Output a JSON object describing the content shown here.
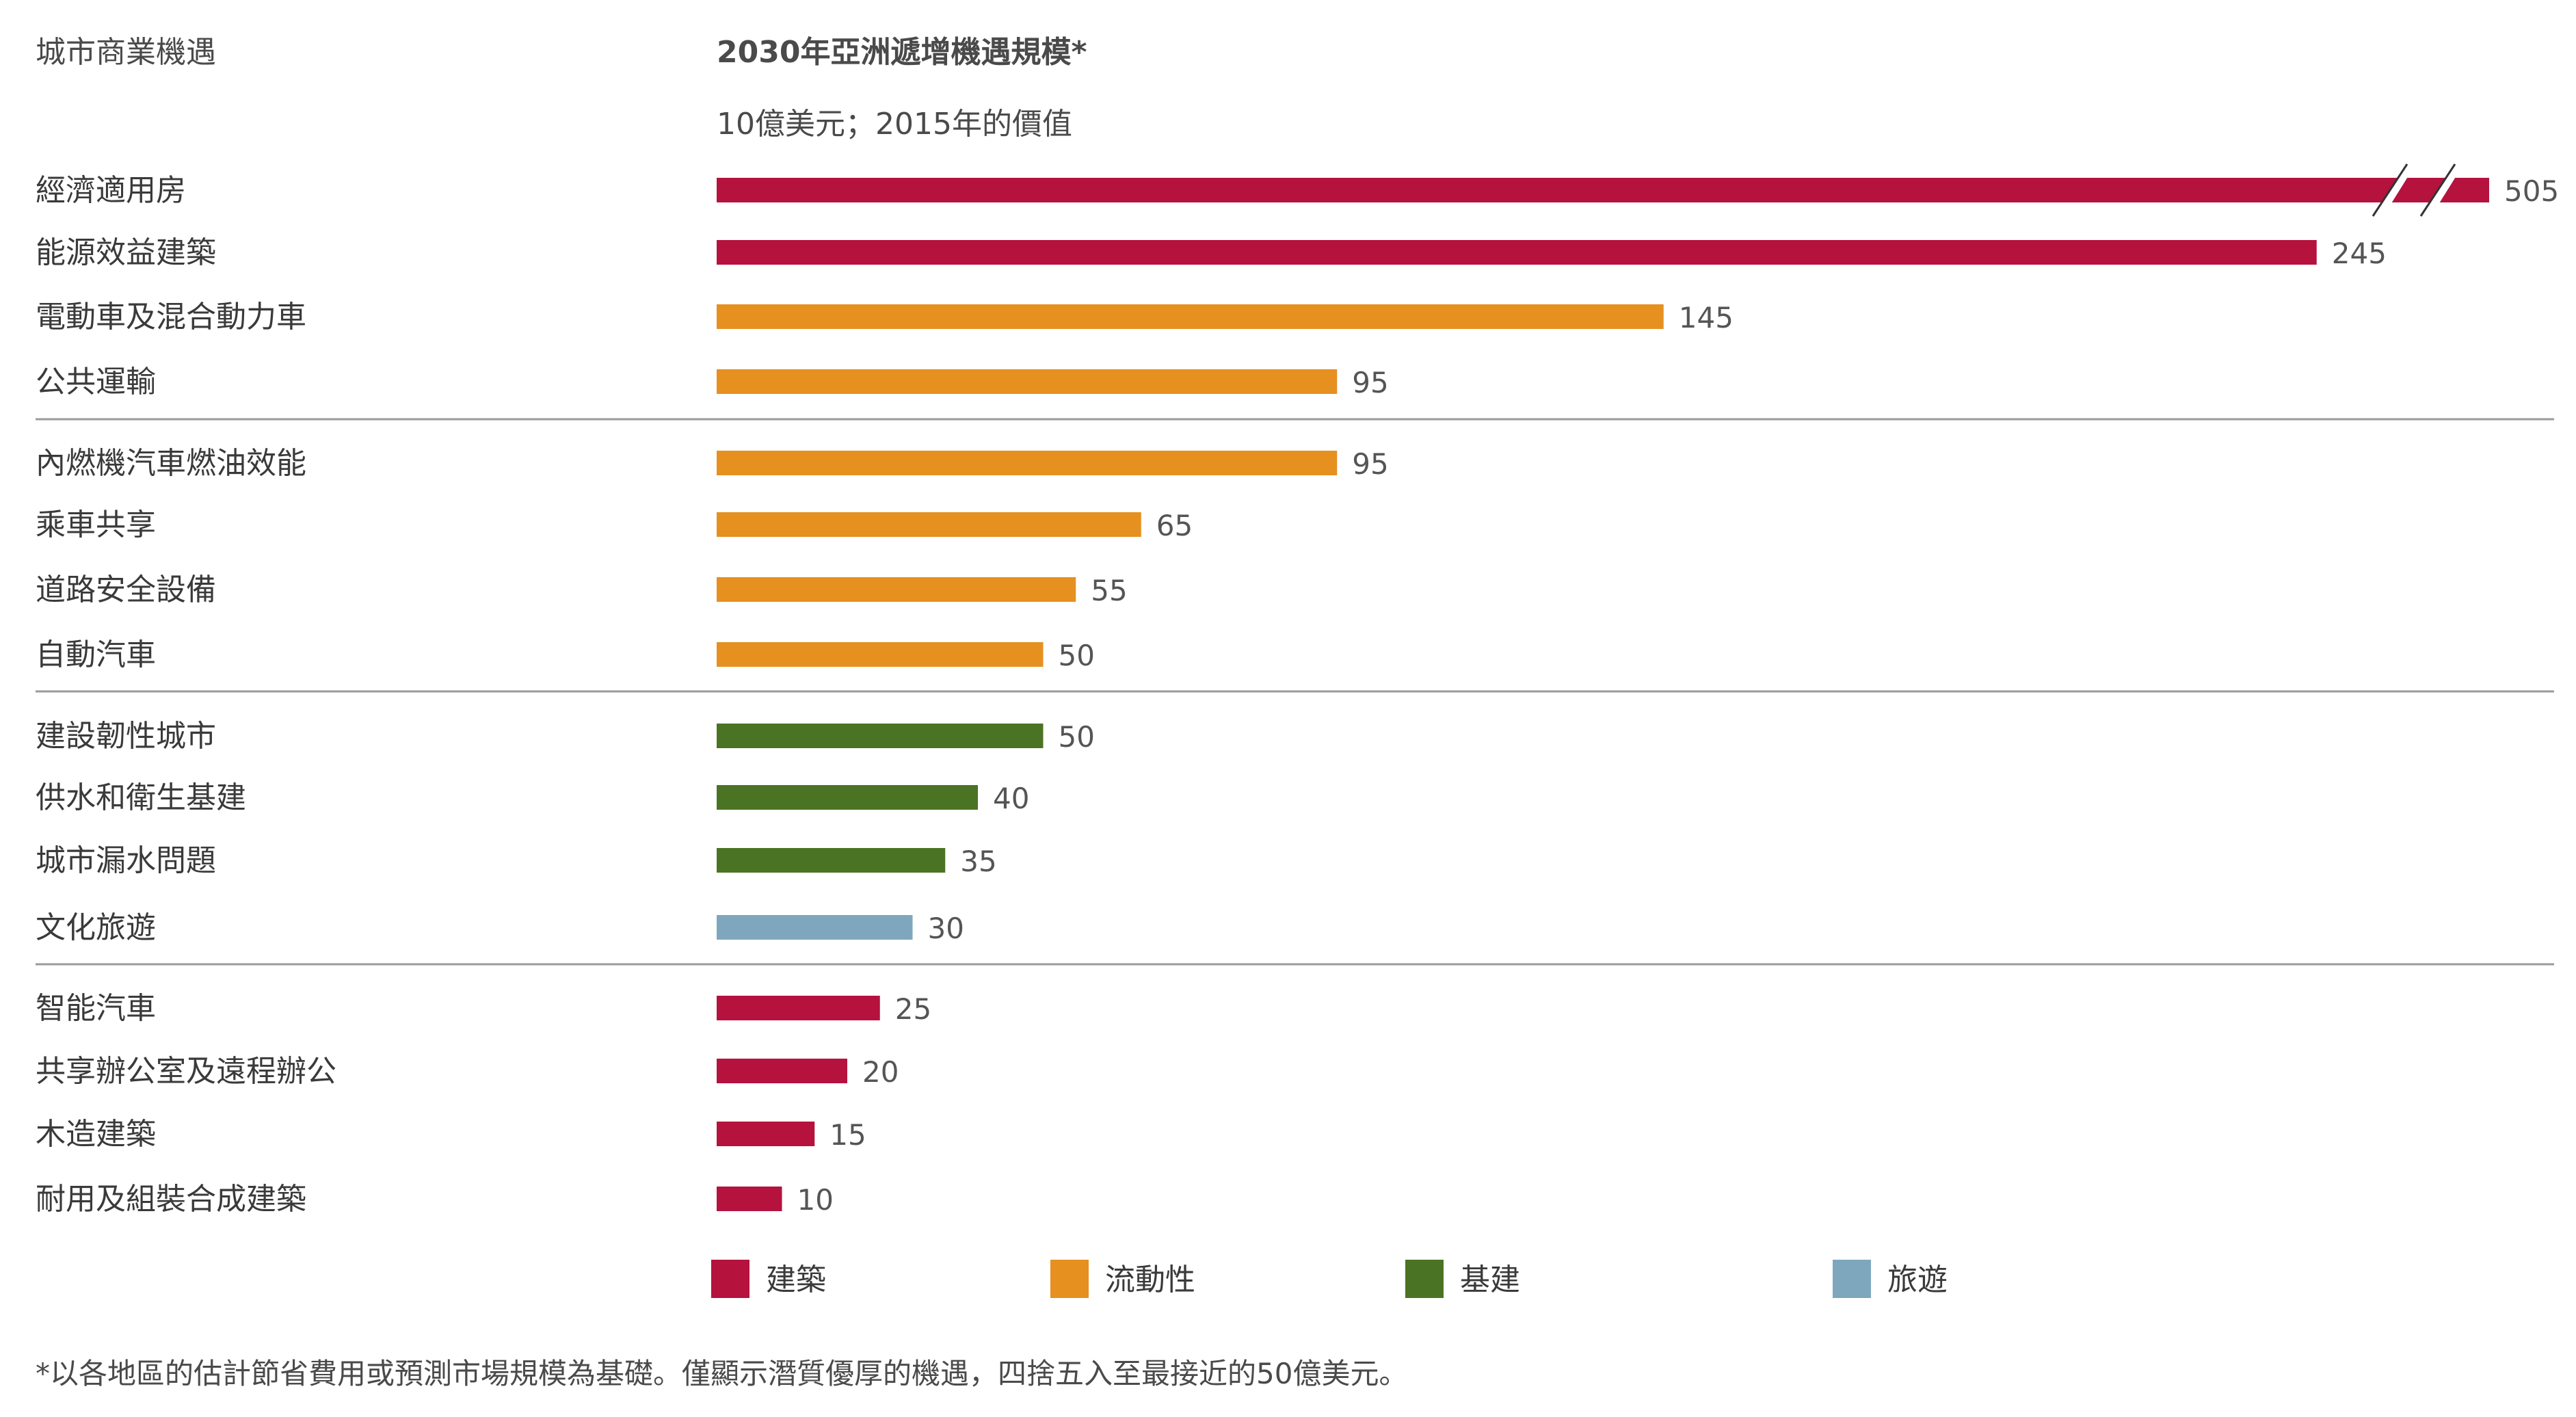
{
  "header": {
    "left_label": "城市商業機遇",
    "title": "2030年亞洲遞增機遇規模*",
    "subtitle": "10億美元；2015年的價值"
  },
  "colors": {
    "建築": "#b5123e",
    "流動性": "#e5901f",
    "基建": "#4a7324",
    "旅遊": "#7ea7bd"
  },
  "chart_data": {
    "type": "bar",
    "orientation": "horizontal",
    "title": "2030年亞洲遞增機遇規模*",
    "subtitle": "10億美元；2015年的價值",
    "axis_break": {
      "value": 505,
      "note": "bar truncated with break marks"
    },
    "categories": [
      "經濟適用房",
      "能源效益建築",
      "電動車及混合動力車",
      "公共運輸",
      "內燃機汽車燃油效能",
      "乘車共享",
      "道路安全設備",
      "自動汽車",
      "建設韌性城市",
      "供水和衛生基建",
      "城市漏水問題",
      "文化旅遊",
      "智能汽車",
      "共享辦公室及遠程辦公",
      "木造建築",
      "耐用及組裝合成建築"
    ],
    "values": [
      505,
      245,
      145,
      95,
      95,
      65,
      55,
      50,
      50,
      40,
      35,
      30,
      25,
      20,
      15,
      10
    ],
    "value_labels": [
      "505",
      "245",
      "145",
      "95",
      "95",
      "65",
      "55",
      "50",
      "50",
      "40",
      "35",
      "30",
      "25",
      "20",
      "15",
      "10"
    ],
    "bar_groups": [
      "建築",
      "建築",
      "流動性",
      "流動性",
      "流動性",
      "流動性",
      "流動性",
      "流動性",
      "基建",
      "基建",
      "基建",
      "旅遊",
      "建築",
      "建築",
      "建築",
      "建築"
    ],
    "section_breaks_after_index": [
      3,
      7,
      11
    ],
    "legend": {
      "placement": "bottom",
      "items": [
        {
          "name": "建築",
          "color": "#b5123e"
        },
        {
          "name": "流動性",
          "color": "#e5901f"
        },
        {
          "name": "基建",
          "color": "#4a7324"
        },
        {
          "name": "旅遊",
          "color": "#7ea7bd"
        }
      ]
    },
    "grid": false
  },
  "footnote": "*以各地區的估計節省費用或預測市場規模為基礎。僅顯示潛質優厚的機遇，四捨五入至最接近的50億美元。"
}
